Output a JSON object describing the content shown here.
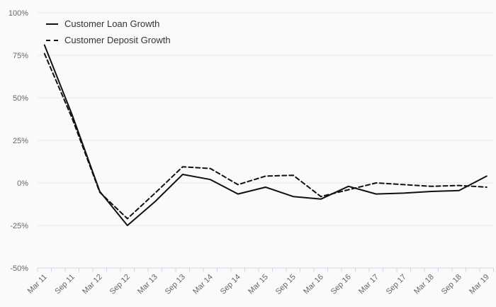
{
  "chart": {
    "title": "",
    "colors": {
      "background": "#fafafa",
      "gridline": "#e8e8e8",
      "axis_line": "#ccd6eb",
      "tick_label": "#666666",
      "legend_text": "#333333",
      "series_line": "#111111"
    }
  },
  "chart_data": {
    "type": "line",
    "categories": [
      "Mar 11",
      "Sep 11",
      "Mar 12",
      "Sep 12",
      "Mar 13",
      "Sep 13",
      "Mar 14",
      "Sep 14",
      "Mar 15",
      "Sep 15",
      "Mar 16",
      "Sep 16",
      "Mar 17",
      "Sep 17",
      "Mar 18",
      "Sep 18",
      "Mar 19"
    ],
    "series": [
      {
        "name": "Customer Loan Growth",
        "line_style": "solid",
        "values": [
          81,
          40,
          -5,
          -25,
          -11,
          5,
          2,
          -6.5,
          -2.5,
          -8,
          -9.5,
          -2,
          -6.5,
          -6,
          -5,
          -4.5,
          4
        ]
      },
      {
        "name": "Customer Deposit Growth",
        "line_style": "dashed",
        "values": [
          76,
          38,
          -5.5,
          -21,
          -6,
          9.5,
          8.5,
          -1,
          4,
          4.5,
          -8,
          -4,
          0,
          -1,
          -2,
          -1.5,
          -2.5
        ]
      }
    ],
    "y_ticks": [
      "100%",
      "75%",
      "50%",
      "25%",
      "0%",
      "-25%",
      "-50%"
    ],
    "ylim": [
      -50,
      100
    ],
    "xlabel": "",
    "ylabel": "",
    "grid": true,
    "minor_ticks_between_labels": true,
    "legend_position": "top-left"
  }
}
